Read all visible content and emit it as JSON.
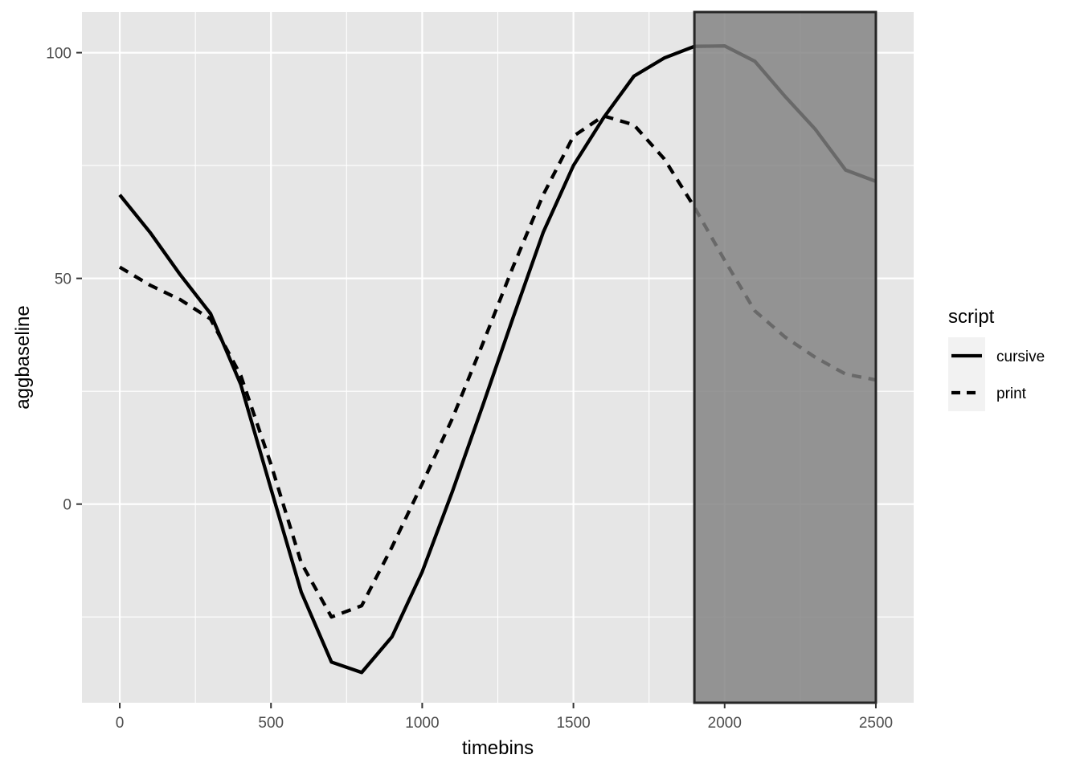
{
  "chart_data": {
    "type": "line",
    "xlabel": "timebins",
    "ylabel": "aggbaseline",
    "xlim": [
      -125,
      2625
    ],
    "ylim": [
      -44,
      109
    ],
    "x_ticks": [
      0,
      500,
      1000,
      1500,
      2000,
      2500
    ],
    "x_tick_labels": [
      "0",
      "500",
      "1000",
      "1500",
      "2000",
      "2500"
    ],
    "y_ticks": [
      0,
      50,
      100
    ],
    "y_tick_labels": [
      "0",
      "50",
      "100"
    ],
    "x_minor_ticks": [
      250,
      750,
      1250,
      1750,
      2250
    ],
    "y_minor_ticks": [
      -25,
      25,
      75
    ],
    "grid": true,
    "panel_background": "#e6e6e6",
    "grid_color": "#ffffff",
    "x": [
      0,
      100,
      200,
      300,
      400,
      500,
      600,
      700,
      800,
      900,
      1000,
      1100,
      1200,
      1300,
      1400,
      1500,
      1600,
      1700,
      1800,
      1900,
      2000,
      2100,
      2200,
      2300,
      2400,
      2500
    ],
    "series": [
      {
        "name": "cursive",
        "linetype": "solid",
        "color": "#000000",
        "values": [
          68.5,
          60.2,
          50.8,
          42.2,
          26.5,
          3.4,
          -19.5,
          -35.0,
          -37.3,
          -29.4,
          -15.0,
          2.8,
          21.8,
          41.2,
          60.2,
          75.0,
          85.6,
          94.8,
          98.8,
          101.4,
          101.5,
          98.1,
          90.3,
          83.0,
          74.0,
          71.5
        ]
      },
      {
        "name": "print",
        "linetype": "dashed",
        "color": "#000000",
        "values": [
          52.5,
          48.5,
          45.3,
          41.0,
          28.5,
          8.8,
          -13.0,
          -25.0,
          -22.5,
          -9.5,
          4.5,
          19.0,
          35.5,
          52.5,
          68.5,
          81.5,
          86.0,
          84.0,
          76.5,
          65.8,
          54.0,
          42.8,
          37.0,
          32.5,
          28.8,
          27.5
        ]
      }
    ],
    "highlight_rect": {
      "x_min": 1900,
      "x_max": 2500,
      "fill": "#808080",
      "stroke": "#262626"
    },
    "legend": {
      "title": "script",
      "placement": "right",
      "entries": [
        {
          "label": "cursive",
          "linetype": "solid"
        },
        {
          "label": "print",
          "linetype": "dashed"
        }
      ]
    }
  }
}
